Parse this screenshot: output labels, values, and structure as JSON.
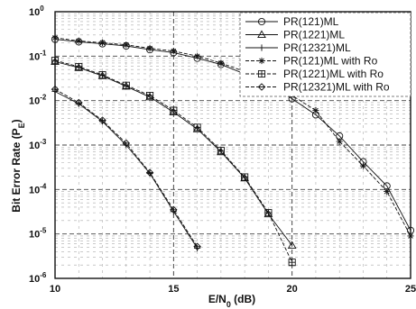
{
  "chart_data": {
    "type": "line",
    "xlabel": {
      "main": "E",
      "sub1": "b",
      "mid": "/N",
      "sub2": "0",
      "tail": " (dB)"
    },
    "ylabel": {
      "main": "Bit Error Rate (P",
      "sub": "E",
      "tail": ")"
    },
    "xlim": [
      10,
      25
    ],
    "ylim_exp": [
      -6,
      0
    ],
    "y_scale": "log",
    "x_ticks": [
      {
        "value": 10,
        "label": "10"
      },
      {
        "value": 15,
        "label": "15"
      },
      {
        "value": 20,
        "label": "20"
      },
      {
        "value": 25,
        "label": "25"
      }
    ],
    "y_ticks": [
      {
        "exp": 0,
        "base": "10",
        "sup": "0"
      },
      {
        "exp": -1,
        "base": "10",
        "sup": "-1"
      },
      {
        "exp": -2,
        "base": "10",
        "sup": "-2"
      },
      {
        "exp": -3,
        "base": "10",
        "sup": "-3"
      },
      {
        "exp": -4,
        "base": "10",
        "sup": "-4"
      },
      {
        "exp": -5,
        "base": "10",
        "sup": "-5"
      },
      {
        "exp": -6,
        "base": "10",
        "sup": "-6"
      }
    ],
    "grid": true,
    "legend_position": "top-right",
    "series": [
      {
        "name": "PR(121)ML",
        "marker": "circle",
        "dash": "solid",
        "x": [
          10,
          11,
          12,
          13,
          14,
          15,
          16,
          17,
          18,
          19,
          20,
          21,
          22,
          23,
          24,
          25
        ],
        "y": [
          0.24,
          0.21,
          0.19,
          0.17,
          0.14,
          0.12,
          0.09,
          0.065,
          0.04,
          0.023,
          0.011,
          0.0048,
          0.0016,
          0.00042,
          0.00012,
          1.2e-05
        ]
      },
      {
        "name": "PR(1221)ML",
        "marker": "triangle",
        "dash": "solid",
        "x": [
          10,
          11,
          12,
          13,
          14,
          15,
          16,
          17,
          18,
          19,
          20
        ],
        "y": [
          0.075,
          0.055,
          0.036,
          0.021,
          0.012,
          0.0055,
          0.0023,
          0.0007,
          0.00018,
          2.8e-05,
          5.5e-06
        ]
      },
      {
        "name": "PR(12321)ML",
        "marker": "plus",
        "dash": "solid",
        "x": [
          10,
          11,
          12,
          13,
          14,
          15,
          16
        ],
        "y": [
          0.016,
          0.0085,
          0.0034,
          0.001,
          0.00023,
          3.2e-05,
          4.8e-06
        ]
      },
      {
        "name": "PR(121)ML with Ro",
        "marker": "star",
        "dash": "dashed",
        "x": [
          10,
          11,
          12,
          13,
          14,
          15,
          16,
          17,
          18,
          19,
          20,
          21,
          22,
          23,
          24,
          25
        ],
        "y": [
          0.26,
          0.22,
          0.2,
          0.18,
          0.15,
          0.13,
          0.1,
          0.07,
          0.045,
          0.026,
          0.013,
          0.006,
          0.0012,
          0.00034,
          9e-05,
          9e-06
        ]
      },
      {
        "name": "PR(1221)ML with Ro",
        "marker": "box",
        "dash": "dashed",
        "x": [
          10,
          11,
          12,
          13,
          14,
          15,
          16,
          17,
          18,
          19,
          20
        ],
        "y": [
          0.08,
          0.058,
          0.038,
          0.022,
          0.013,
          0.006,
          0.0025,
          0.00075,
          0.00019,
          3e-05,
          2.3e-06
        ]
      },
      {
        "name": "PR(12321)ML with Ro",
        "marker": "diamond",
        "dash": "dashed",
        "x": [
          10,
          11,
          12,
          13,
          14,
          15,
          16
        ],
        "y": [
          0.018,
          0.009,
          0.0036,
          0.0011,
          0.00024,
          3.5e-05,
          5.2e-06
        ]
      }
    ]
  }
}
